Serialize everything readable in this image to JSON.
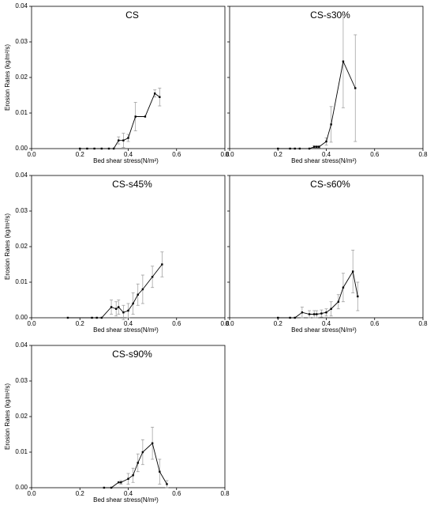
{
  "chart_data": [
    {
      "type": "line",
      "title": "CS",
      "xlabel": "Bed shear stress(N/m²)",
      "ylabel": "Erosion Rates (kg/m²/s)",
      "ytick_labels": true,
      "color": "#000000",
      "x": [
        0.2,
        0.23,
        0.26,
        0.29,
        0.32,
        0.34,
        0.36,
        0.38,
        0.4,
        0.43,
        0.47,
        0.51,
        0.53
      ],
      "values": [
        0,
        0,
        0,
        0,
        0,
        0,
        0.0023,
        0.0023,
        0.003,
        0.009,
        0.009,
        0.0155,
        0.0145
      ],
      "errors": [
        null,
        null,
        null,
        null,
        null,
        null,
        0.001,
        0.002,
        0.001,
        0.004,
        null,
        0.001,
        0.0025
      ],
      "xlim": [
        0,
        0.8
      ],
      "xticks": [
        {
          "value": 0,
          "label": "0.0"
        },
        0.2,
        0.4,
        0.6,
        0.8
      ],
      "ylim": [
        0,
        0.04
      ],
      "yticks": [
        {
          "value": 0,
          "label": "0.00"
        },
        {
          "value": 0.01,
          "label": "0.01"
        },
        {
          "value": 0.02,
          "label": "0.02"
        },
        {
          "value": 0.03,
          "label": "0.03"
        },
        {
          "value": 0.04,
          "label": "0.04"
        }
      ]
    },
    {
      "type": "line",
      "title": "CS-s30%",
      "xlabel": "Bed shear stress(N/m²)",
      "ytick_labels": false,
      "color": "#000000",
      "x": [
        0.2,
        0.25,
        0.27,
        0.29,
        0.33,
        0.35,
        0.36,
        0.37,
        0.4,
        0.42,
        0.47,
        0.52
      ],
      "values": [
        0,
        0,
        0,
        0,
        0,
        0.0005,
        0.0005,
        0.0005,
        0.002,
        0.0068,
        0.0245,
        0.017
      ],
      "errors": [
        null,
        null,
        null,
        null,
        null,
        0.0003,
        0.0003,
        0.0003,
        0.001,
        0.005,
        0.013,
        0.015
      ],
      "xlim": [
        0,
        0.8
      ],
      "xticks": [
        {
          "value": 0,
          "label": "0.0"
        },
        0.2,
        0.4,
        0.6,
        0.8
      ],
      "ylim": [
        0,
        0.04
      ],
      "yticks": [
        0,
        0.01,
        0.02,
        0.03,
        0.04
      ]
    },
    {
      "type": "line",
      "title": "CS-s45%",
      "xlabel": "Bed shear stress(N/m²)",
      "ylabel": "Erosion Rates (kg/m²/s)",
      "ytick_labels": true,
      "color": "#000000",
      "x": [
        0.15,
        0.25,
        0.27,
        0.29,
        0.33,
        0.35,
        0.36,
        0.38,
        0.4,
        0.42,
        0.44,
        0.46,
        0.5,
        0.54
      ],
      "values": [
        0,
        0,
        0,
        0,
        0.003,
        0.0025,
        0.003,
        0.0015,
        0.002,
        0.004,
        0.0065,
        0.008,
        0.0115,
        0.015
      ],
      "errors": [
        null,
        null,
        null,
        null,
        0.002,
        0.002,
        0.002,
        0.002,
        0.002,
        0.003,
        0.003,
        0.004,
        0.003,
        0.0035
      ],
      "xlim": [
        0,
        0.8
      ],
      "xticks": [
        {
          "value": 0,
          "label": "0.0"
        },
        0.2,
        0.4,
        0.6,
        0.8
      ],
      "ylim": [
        0,
        0.04
      ],
      "yticks": [
        {
          "value": 0,
          "label": "0.00"
        },
        {
          "value": 0.01,
          "label": "0.01"
        },
        {
          "value": 0.02,
          "label": "0.02"
        },
        {
          "value": 0.03,
          "label": "0.03"
        },
        {
          "value": 0.04,
          "label": "0.04"
        }
      ]
    },
    {
      "type": "line",
      "title": "CS-s60%",
      "xlabel": "Bed shear stress(N/m²)",
      "ytick_labels": false,
      "color": "#000000",
      "x": [
        0.2,
        0.25,
        0.27,
        0.3,
        0.33,
        0.35,
        0.36,
        0.38,
        0.4,
        0.42,
        0.45,
        0.47,
        0.51,
        0.53
      ],
      "values": [
        0,
        0,
        0,
        0.0015,
        0.001,
        0.001,
        0.001,
        0.0012,
        0.0015,
        0.0025,
        0.0045,
        0.0085,
        0.013,
        0.006
      ],
      "errors": [
        null,
        null,
        null,
        0.0015,
        0.001,
        0.001,
        0.001,
        0.001,
        0.001,
        0.002,
        0.002,
        0.004,
        0.006,
        0.004
      ],
      "xlim": [
        0,
        0.8
      ],
      "xticks": [
        {
          "value": 0,
          "label": "0.0"
        },
        0.2,
        0.4,
        0.6,
        0.8
      ],
      "ylim": [
        0,
        0.04
      ],
      "yticks": [
        0,
        0.01,
        0.02,
        0.03,
        0.04
      ]
    },
    {
      "type": "line",
      "title": "CS-s90%",
      "xlabel": "Bed shear stress(N/m²)",
      "ylabel": "Erosion Rates (kg/m²/s)",
      "ytick_labels": true,
      "color": "#000000",
      "x": [
        0.3,
        0.33,
        0.36,
        0.37,
        0.4,
        0.42,
        0.44,
        0.46,
        0.5,
        0.53,
        0.56
      ],
      "values": [
        0,
        0,
        0.0015,
        0.0015,
        0.0025,
        0.0035,
        0.007,
        0.01,
        0.0125,
        0.0045,
        0.001
      ],
      "errors": [
        null,
        null,
        null,
        0.0005,
        0.0015,
        0.002,
        0.0025,
        0.0035,
        0.0045,
        0.0035,
        0.001
      ],
      "xlim": [
        0,
        0.8
      ],
      "xticks": [
        {
          "value": 0,
          "label": "0.0"
        },
        0.2,
        0.4,
        0.6,
        0.8
      ],
      "ylim": [
        0,
        0.04
      ],
      "yticks": [
        {
          "value": 0,
          "label": "0.00"
        },
        {
          "value": 0.01,
          "label": "0.01"
        },
        {
          "value": 0.02,
          "label": "0.02"
        },
        {
          "value": 0.03,
          "label": "0.03"
        },
        {
          "value": 0.04,
          "label": "0.04"
        }
      ]
    }
  ]
}
